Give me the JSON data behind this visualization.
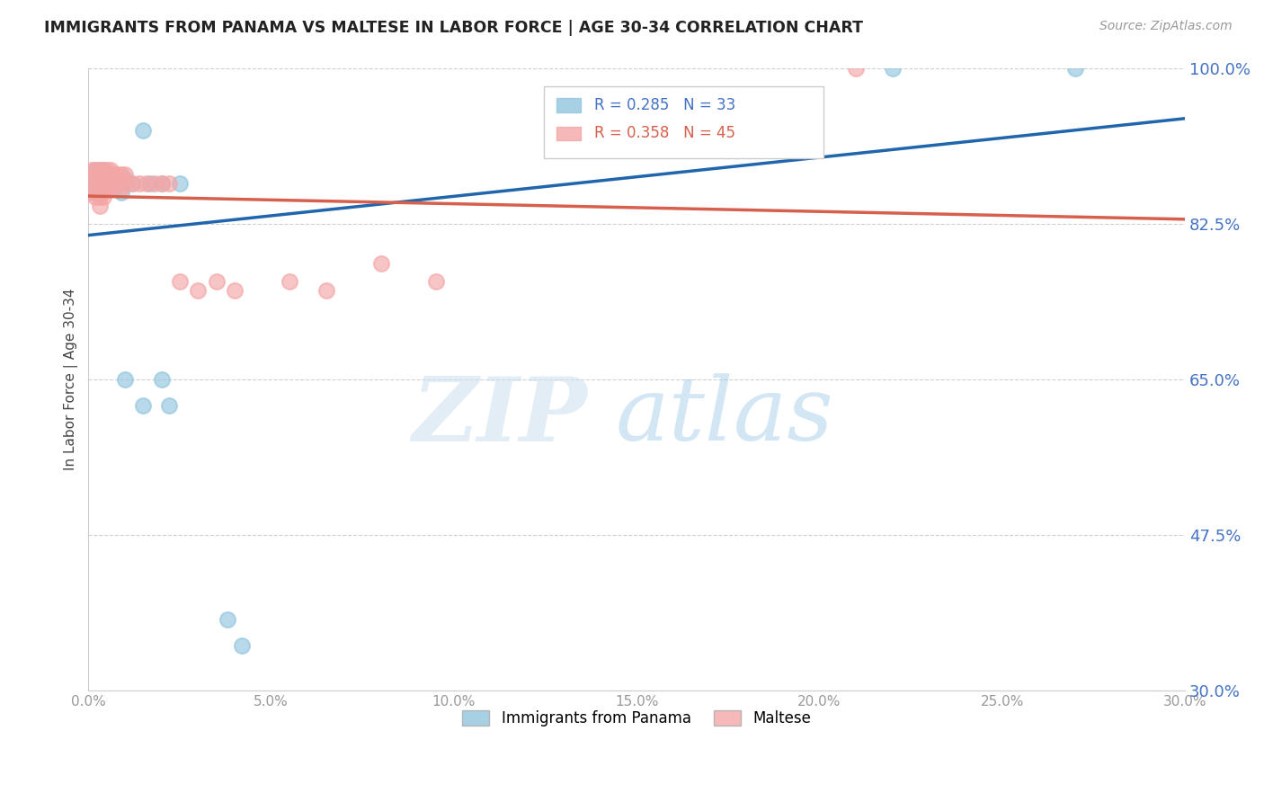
{
  "title": "IMMIGRANTS FROM PANAMA VS MALTESE IN LABOR FORCE | AGE 30-34 CORRELATION CHART",
  "source": "Source: ZipAtlas.com",
  "ylabel": "In Labor Force | Age 30-34",
  "xlim": [
    0.0,
    0.3
  ],
  "ylim": [
    0.3,
    1.0
  ],
  "yticks": [
    1.0,
    0.825,
    0.65,
    0.475,
    0.3
  ],
  "ytick_labels": [
    "100.0%",
    "82.5%",
    "65.0%",
    "47.5%",
    "30.0%"
  ],
  "xticks": [
    0.0,
    0.05,
    0.1,
    0.15,
    0.2,
    0.25,
    0.3
  ],
  "xtick_labels": [
    "0.0%",
    "5.0%",
    "10.0%",
    "15.0%",
    "20.0%",
    "25.0%",
    "30.0%"
  ],
  "blue_R": 0.285,
  "blue_N": 33,
  "pink_R": 0.358,
  "pink_N": 45,
  "blue_color": "#92c5de",
  "pink_color": "#f4a6a6",
  "blue_line_color": "#2166ac",
  "pink_line_color": "#d6604d",
  "legend_label_blue": "Immigrants from Panama",
  "legend_label_pink": "Maltese",
  "blue_x": [
    0.001,
    0.001,
    0.002,
    0.002,
    0.002,
    0.003,
    0.003,
    0.003,
    0.003,
    0.004,
    0.004,
    0.005,
    0.005,
    0.006,
    0.006,
    0.007,
    0.007,
    0.008,
    0.009,
    0.01,
    0.012,
    0.015,
    0.017,
    0.02,
    0.025,
    0.01,
    0.02,
    0.015,
    0.022,
    0.038,
    0.042,
    0.22,
    0.27
  ],
  "blue_y": [
    0.88,
    0.875,
    0.885,
    0.875,
    0.86,
    0.885,
    0.875,
    0.87,
    0.86,
    0.885,
    0.875,
    0.88,
    0.87,
    0.88,
    0.87,
    0.875,
    0.865,
    0.87,
    0.86,
    0.875,
    0.87,
    0.93,
    0.87,
    0.87,
    0.87,
    0.65,
    0.65,
    0.62,
    0.62,
    0.38,
    0.35,
    1.0,
    1.0
  ],
  "pink_x": [
    0.001,
    0.001,
    0.001,
    0.002,
    0.002,
    0.002,
    0.002,
    0.003,
    0.003,
    0.003,
    0.003,
    0.003,
    0.004,
    0.004,
    0.004,
    0.004,
    0.005,
    0.005,
    0.005,
    0.006,
    0.006,
    0.006,
    0.007,
    0.007,
    0.008,
    0.008,
    0.009,
    0.009,
    0.01,
    0.01,
    0.012,
    0.014,
    0.016,
    0.018,
    0.02,
    0.022,
    0.025,
    0.03,
    0.035,
    0.04,
    0.055,
    0.065,
    0.08,
    0.095,
    0.21
  ],
  "pink_y": [
    0.885,
    0.875,
    0.86,
    0.885,
    0.875,
    0.865,
    0.855,
    0.885,
    0.875,
    0.865,
    0.855,
    0.845,
    0.885,
    0.875,
    0.865,
    0.855,
    0.885,
    0.875,
    0.865,
    0.885,
    0.875,
    0.865,
    0.88,
    0.87,
    0.88,
    0.87,
    0.88,
    0.865,
    0.88,
    0.87,
    0.87,
    0.87,
    0.87,
    0.87,
    0.87,
    0.87,
    0.76,
    0.75,
    0.76,
    0.75,
    0.76,
    0.75,
    0.78,
    0.76,
    1.0
  ],
  "watermark_zip": "ZIP",
  "watermark_atlas": "atlas",
  "background_color": "#ffffff",
  "grid_color": "#d0d0d0"
}
